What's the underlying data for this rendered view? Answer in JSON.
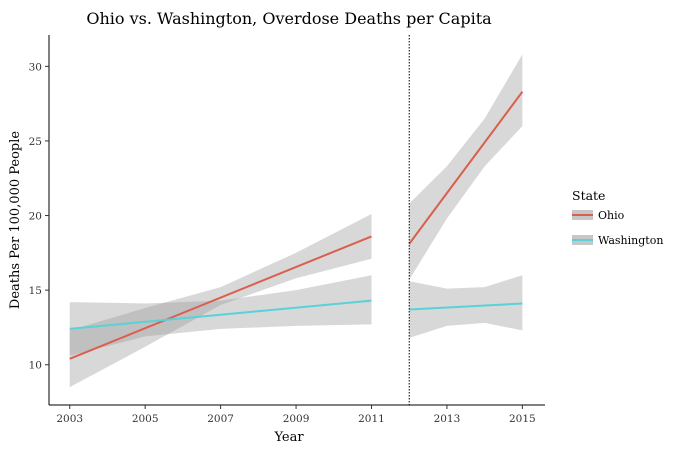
{
  "chart_data": {
    "type": "line",
    "title": "Ohio vs. Washington, Overdose Deaths per Capita",
    "xlabel": "Year",
    "ylabel": "Deaths Per 100,000 People",
    "xlim": [
      2002.45,
      2015.6
    ],
    "ylim": [
      7.3,
      32.1
    ],
    "x_ticks": [
      2003,
      2005,
      2007,
      2009,
      2011,
      2013,
      2015
    ],
    "y_ticks": [
      10,
      15,
      20,
      25,
      30
    ],
    "vline_x": 2012,
    "grid": false,
    "legend": {
      "title": "State",
      "placement": "right",
      "entries": [
        "Ohio",
        "Washington"
      ]
    },
    "series": [
      {
        "name": "Ohio",
        "color": "#d95f4f",
        "segments": [
          {
            "x": [
              2003,
              2011
            ],
            "y": [
              10.4,
              18.6
            ],
            "band_x": [
              2003,
              2005,
              2007,
              2009,
              2011
            ],
            "band_lower": [
              8.5,
              11.2,
              14.0,
              15.8,
              17.1
            ],
            "band_upper": [
              12.3,
              13.8,
              15.2,
              17.5,
              20.1
            ]
          },
          {
            "x": [
              2012,
              2013,
              2014,
              2015
            ],
            "y": [
              18.1,
              21.5,
              24.9,
              28.3
            ],
            "band_x": [
              2012,
              2013,
              2014,
              2015
            ],
            "band_lower": [
              15.7,
              19.8,
              23.3,
              26.0
            ],
            "band_upper": [
              20.8,
              23.3,
              26.5,
              30.8
            ]
          }
        ]
      },
      {
        "name": "Washington",
        "color": "#5ad1d9",
        "segments": [
          {
            "x": [
              2003,
              2011
            ],
            "y": [
              12.4,
              14.3
            ],
            "band_x": [
              2003,
              2005,
              2007,
              2009,
              2011
            ],
            "band_lower": [
              10.6,
              11.9,
              12.4,
              12.6,
              12.7
            ],
            "band_upper": [
              14.2,
              14.1,
              14.3,
              15.0,
              16.0
            ]
          },
          {
            "x": [
              2012,
              2015
            ],
            "y": [
              13.7,
              14.1
            ],
            "band_x": [
              2012,
              2013,
              2014,
              2015
            ],
            "band_lower": [
              11.8,
              12.6,
              12.8,
              12.3
            ],
            "band_upper": [
              15.6,
              15.1,
              15.2,
              16.0
            ]
          }
        ]
      }
    ]
  }
}
